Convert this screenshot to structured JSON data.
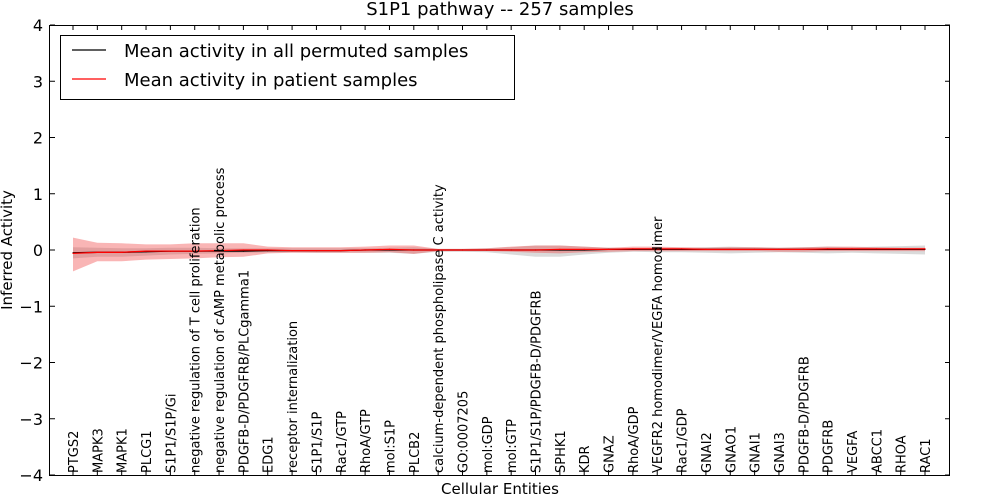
{
  "chart_data": {
    "type": "line",
    "title": "S1P1 pathway -- 257 samples",
    "xlabel": "Cellular Entities",
    "ylabel": "Inferred Activity",
    "ylim": [
      -4,
      4
    ],
    "yticks": [
      4,
      3,
      2,
      1,
      0,
      -1,
      -2,
      -3,
      -4
    ],
    "ytick_labels": [
      "4",
      "3",
      "2",
      "1",
      "0",
      "−1",
      "−2",
      "−3",
      "−4"
    ],
    "grid": false,
    "legend_position": "top-left",
    "categories": [
      "PTGS2",
      "MAPK3",
      "MAPK1",
      "PLCG1",
      "S1P1/S1P/Gi",
      "negative regulation of T cell proliferation",
      "negative regulation of cAMP metabolic process",
      "PDGFB-D/PDGFRB/PLCgamma1",
      "EDG1",
      "receptor internalization",
      "S1P1/S1P",
      "Rac1/GTP",
      "RhoA/GTP",
      "mol:S1P",
      "PLCB2",
      "calcium-dependent phospholipase C activity",
      "GO:0007205",
      "mol:GDP",
      "mol:GTP",
      "S1P1/S1P/PDGFB-D/PDGFRB",
      "SPHK1",
      "KDR",
      "GNAZ",
      "RhoA/GDP",
      "VEGFR2 homodimer/VEGFA homodimer",
      "Rac1/GDP",
      "GNAI2",
      "GNAO1",
      "GNAI1",
      "GNAI3",
      "PDGFB-D/PDGFRB",
      "PDGFRB",
      "VEGFA",
      "ABCC1",
      "RHOA",
      "RAC1"
    ],
    "series": [
      {
        "name": "Mean activity in all permuted samples",
        "color": "#000000",
        "values": [
          -0.05,
          -0.04,
          -0.04,
          -0.03,
          -0.02,
          -0.02,
          -0.02,
          -0.02,
          -0.01,
          -0.01,
          -0.01,
          -0.01,
          0.0,
          0.0,
          0.0,
          0.0,
          0.0,
          0.0,
          0.0,
          0.0,
          0.0,
          0.0,
          0.01,
          0.01,
          0.01,
          0.01,
          0.01,
          0.01,
          0.01,
          0.01,
          0.01,
          0.01,
          0.01,
          0.01,
          0.01,
          0.01
        ],
        "band_lower": [
          -0.15,
          -0.12,
          -0.12,
          -0.1,
          -0.08,
          -0.07,
          -0.06,
          -0.05,
          -0.04,
          -0.04,
          -0.05,
          -0.05,
          -0.05,
          -0.05,
          -0.07,
          -0.03,
          -0.03,
          -0.04,
          -0.08,
          -0.12,
          -0.12,
          -0.08,
          -0.05,
          -0.03,
          -0.04,
          -0.04,
          -0.05,
          -0.06,
          -0.05,
          -0.04,
          -0.05,
          -0.06,
          -0.05,
          -0.06,
          -0.07,
          -0.08
        ],
        "band_upper": [
          0.05,
          0.04,
          0.03,
          0.03,
          0.04,
          0.04,
          0.03,
          0.03,
          0.03,
          0.03,
          0.03,
          0.03,
          0.03,
          0.04,
          0.05,
          0.02,
          0.02,
          0.03,
          0.05,
          0.08,
          0.08,
          0.06,
          0.04,
          0.03,
          0.04,
          0.04,
          0.05,
          0.06,
          0.05,
          0.04,
          0.05,
          0.06,
          0.05,
          0.06,
          0.07,
          0.08
        ]
      },
      {
        "name": "Mean activity in patient samples",
        "color": "#ff0000",
        "values": [
          -0.06,
          -0.04,
          -0.04,
          -0.02,
          -0.02,
          -0.02,
          -0.01,
          0.0,
          0.0,
          -0.01,
          -0.01,
          -0.01,
          0.0,
          0.01,
          0.0,
          0.0,
          0.0,
          0.0,
          0.0,
          0.0,
          0.01,
          0.01,
          0.01,
          0.02,
          0.02,
          0.02,
          0.01,
          0.01,
          0.01,
          0.01,
          0.01,
          0.02,
          0.02,
          0.02,
          0.02,
          0.02
        ],
        "band_lower": [
          -0.38,
          -0.2,
          -0.2,
          -0.17,
          -0.16,
          -0.15,
          -0.13,
          -0.12,
          -0.06,
          -0.05,
          -0.05,
          -0.05,
          -0.05,
          -0.04,
          -0.07,
          -0.02,
          -0.02,
          -0.02,
          -0.03,
          -0.05,
          -0.06,
          -0.04,
          -0.03,
          -0.02,
          -0.02,
          -0.02,
          -0.02,
          -0.02,
          -0.02,
          -0.03,
          -0.03,
          -0.02,
          -0.02,
          -0.02,
          -0.02,
          -0.02
        ],
        "band_upper": [
          0.22,
          0.13,
          0.12,
          0.1,
          0.1,
          0.12,
          0.12,
          0.12,
          0.06,
          0.05,
          0.05,
          0.05,
          0.06,
          0.08,
          0.08,
          0.02,
          0.02,
          0.03,
          0.06,
          0.08,
          0.08,
          0.06,
          0.04,
          0.06,
          0.06,
          0.05,
          0.04,
          0.05,
          0.05,
          0.04,
          0.05,
          0.06,
          0.06,
          0.05,
          0.04,
          0.04
        ]
      }
    ]
  }
}
